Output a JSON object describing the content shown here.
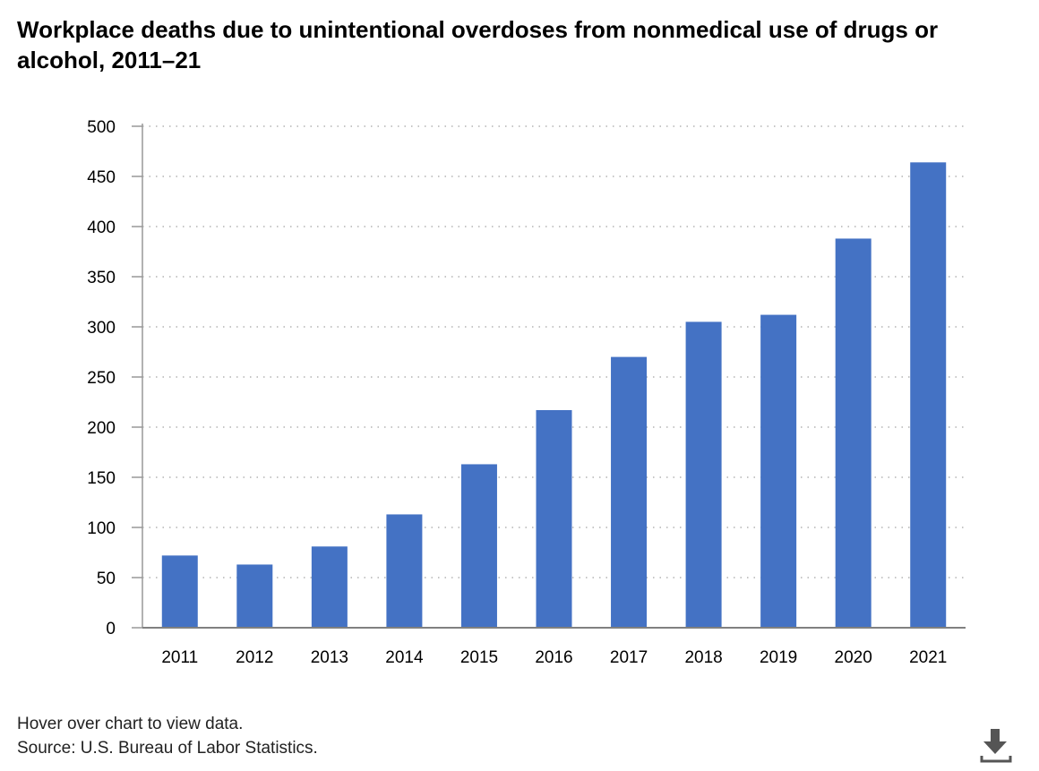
{
  "chart_data": {
    "type": "bar",
    "title": "Workplace deaths due to unintentional overdoses from nonmedical use of drugs or alcohol, 2011–21",
    "categories": [
      "2011",
      "2012",
      "2013",
      "2014",
      "2015",
      "2016",
      "2017",
      "2018",
      "2019",
      "2020",
      "2021"
    ],
    "values": [
      72,
      63,
      81,
      113,
      163,
      217,
      270,
      305,
      312,
      388,
      464
    ],
    "ylim": [
      0,
      500
    ],
    "yticks": [
      0,
      50,
      100,
      150,
      200,
      250,
      300,
      350,
      400,
      450,
      500
    ],
    "grid": true,
    "legend": "none",
    "bar_color": "#4472c4"
  },
  "footer": {
    "hover_note": "Hover over chart to view data.",
    "source": "Source: U.S. Bureau of Labor Statistics."
  },
  "toolbar": {
    "download_icon": "download-icon"
  }
}
